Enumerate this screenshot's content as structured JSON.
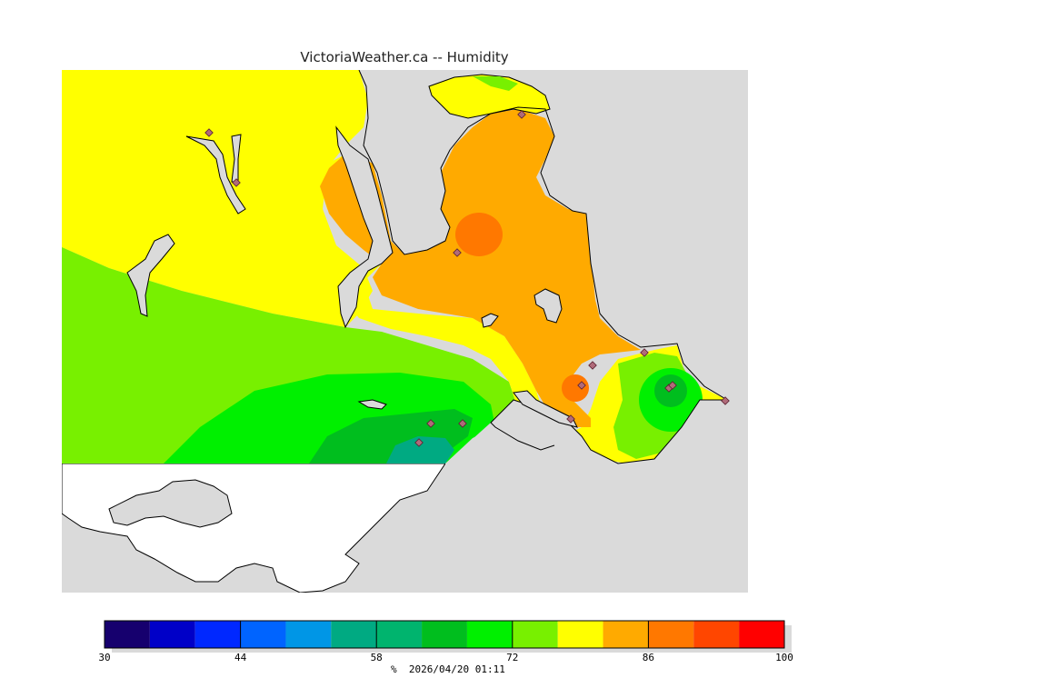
{
  "title": "VictoriaWeather.ca -- Humidity",
  "colors": {
    "background": "#dadada",
    "land_outside": "#ffffff",
    "coast": "#000000",
    "station": "#b06b7a"
  },
  "legend": {
    "min": 30,
    "max": 100,
    "step": 5,
    "tick_labels": [
      "30",
      "44",
      "58",
      "72",
      "86",
      "100"
    ],
    "colors": [
      "#16006e",
      "#0000c8",
      "#0028ff",
      "#0064ff",
      "#0096e6",
      "#00aa82",
      "#00b46e",
      "#00be1e",
      "#00f000",
      "#78f000",
      "#ffff00",
      "#ffaa00",
      "#ff7800",
      "#ff4600",
      "#ff0000"
    ],
    "unit": "%",
    "timestamp": "2026/04/20 01:11"
  }
}
